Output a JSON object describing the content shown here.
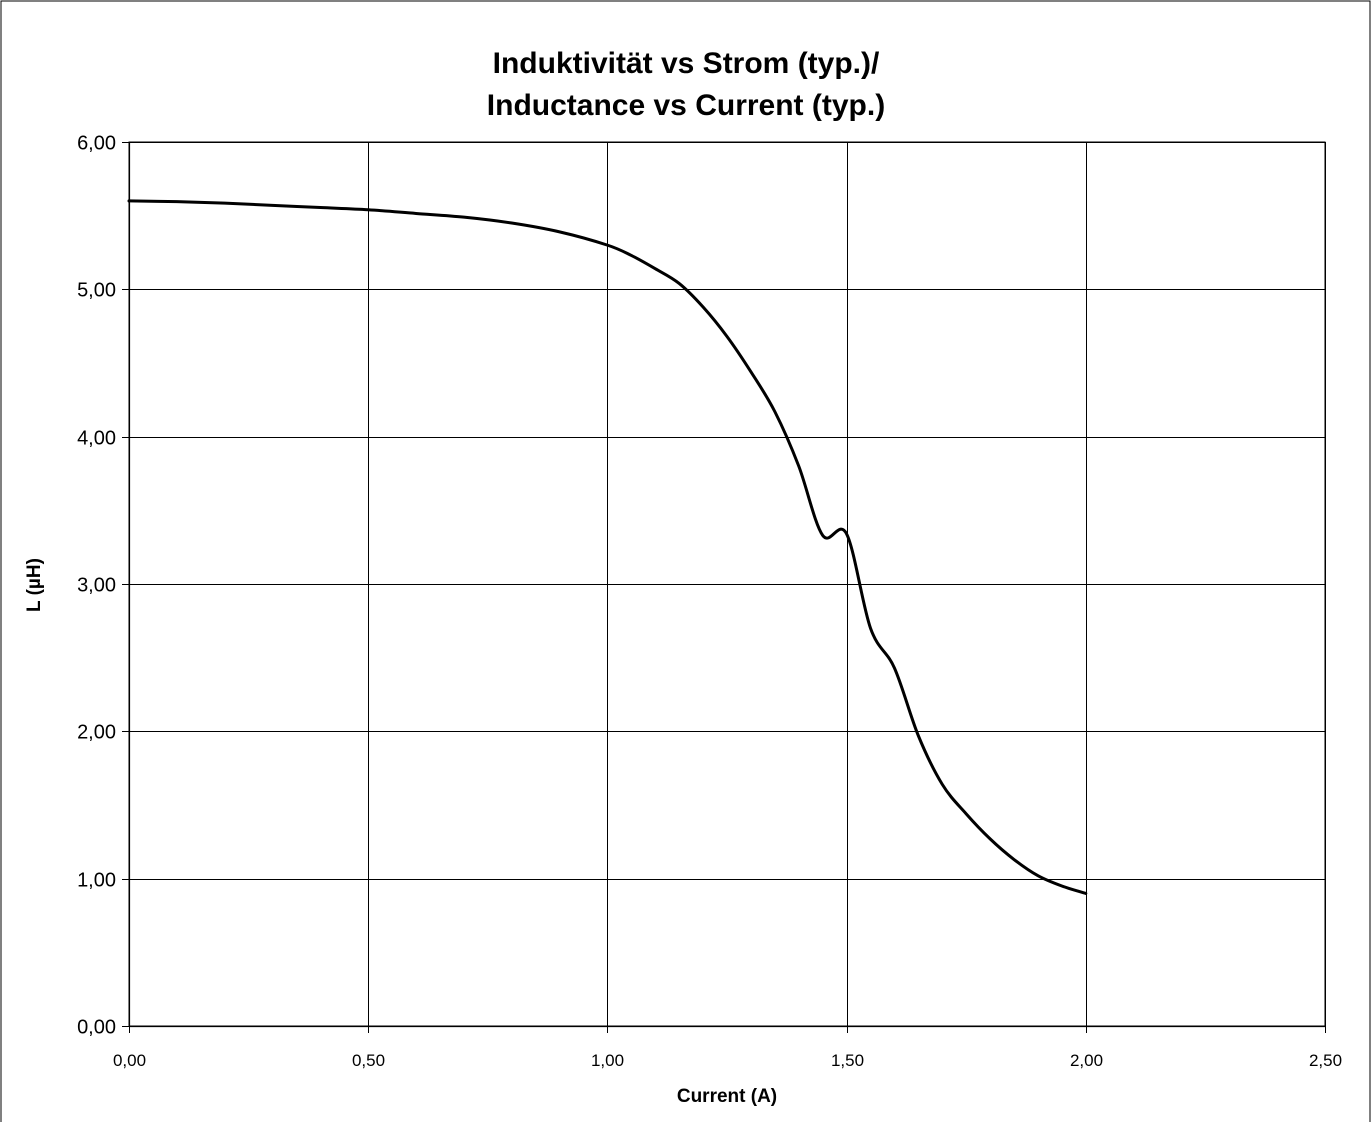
{
  "chart_data": {
    "type": "line",
    "title": [
      "Induktivität vs Strom (typ.)/",
      "Inductance vs Current (typ.)"
    ],
    "xlabel": "Current (A)",
    "ylabel": "L (µH)",
    "xlim": [
      0,
      2.5
    ],
    "ylim": [
      0,
      6
    ],
    "x_ticks": [
      0,
      0.5,
      1.0,
      1.5,
      2.0,
      2.5
    ],
    "x_tick_labels": [
      "0,00",
      "0,50",
      "1,00",
      "1,50",
      "2,00",
      "2,50"
    ],
    "y_ticks": [
      0,
      1,
      2,
      3,
      4,
      5,
      6
    ],
    "y_tick_labels": [
      "0,00",
      "1,00",
      "2,00",
      "3,00",
      "4,00",
      "5,00",
      "6,00"
    ],
    "grid": true,
    "legend": "none",
    "line_color": "#000000",
    "series": [
      {
        "x": [
          0,
          0.1,
          0.2,
          0.3,
          0.4,
          0.5,
          0.6,
          0.7,
          0.8,
          0.9,
          1.0,
          1.05,
          1.1,
          1.15,
          1.2,
          1.25,
          1.3,
          1.35,
          1.4,
          1.45,
          1.5,
          1.55,
          1.6,
          1.65,
          1.7,
          1.75,
          1.8,
          1.85,
          1.9,
          1.95,
          2.0
        ],
        "y": [
          5.6,
          5.595,
          5.585,
          5.57,
          5.555,
          5.54,
          5.515,
          5.49,
          5.45,
          5.39,
          5.3,
          5.23,
          5.14,
          5.04,
          4.88,
          4.68,
          4.44,
          4.17,
          3.8,
          3.33,
          3.34,
          2.7,
          2.43,
          1.97,
          1.64,
          1.44,
          1.27,
          1.13,
          1.02,
          0.95,
          0.9
        ]
      }
    ]
  }
}
